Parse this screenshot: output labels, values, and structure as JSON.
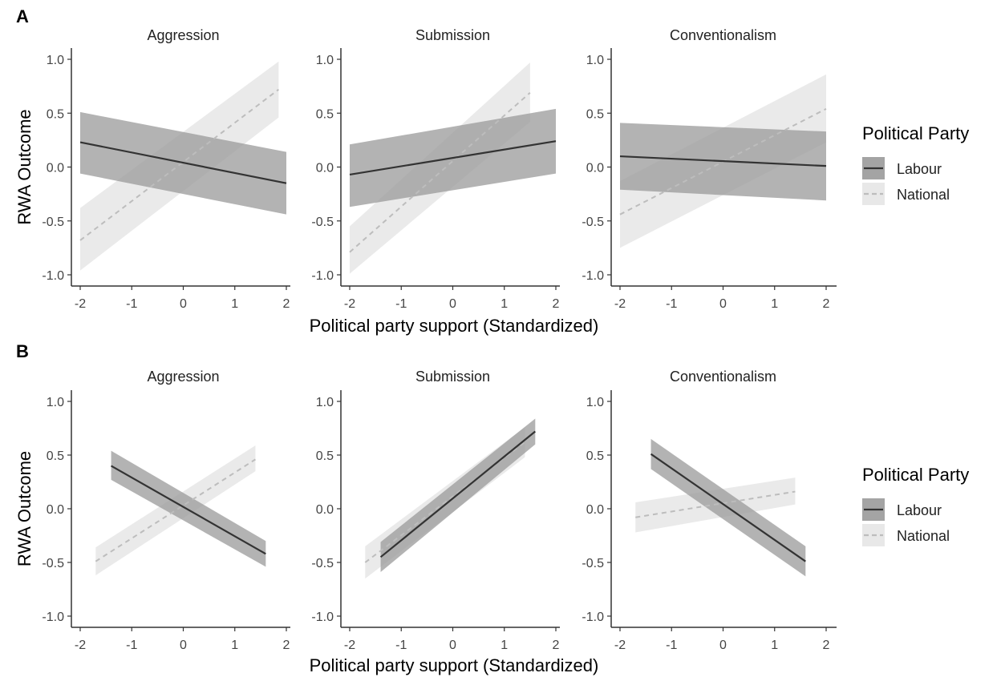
{
  "chart_data": [
    {
      "type": "line",
      "panel": "A",
      "facets": [
        {
          "title": "Aggression",
          "series": [
            {
              "name": "Labour",
              "x": [
                -2,
                2
              ],
              "y": [
                0.23,
                -0.15
              ],
              "ci_lower": [
                -0.06,
                -0.44
              ],
              "ci_upper": [
                0.51,
                0.14
              ]
            },
            {
              "name": "National",
              "x": [
                -2,
                1.85
              ],
              "y": [
                -0.68,
                0.72
              ],
              "ci_lower": [
                -0.96,
                0.46
              ],
              "ci_upper": [
                -0.38,
                0.98
              ]
            }
          ]
        },
        {
          "title": "Submission",
          "series": [
            {
              "name": "Labour",
              "x": [
                -2,
                2
              ],
              "y": [
                -0.07,
                0.24
              ],
              "ci_lower": [
                -0.37,
                -0.06
              ],
              "ci_upper": [
                0.21,
                0.54
              ]
            },
            {
              "name": "National",
              "x": [
                -2,
                1.5
              ],
              "y": [
                -0.79,
                0.69
              ],
              "ci_lower": [
                -0.99,
                0.42
              ],
              "ci_upper": [
                -0.55,
                0.97
              ]
            }
          ]
        },
        {
          "title": "Conventionalism",
          "series": [
            {
              "name": "Labour",
              "x": [
                -2,
                2
              ],
              "y": [
                0.1,
                0.01
              ],
              "ci_lower": [
                -0.21,
                -0.31
              ],
              "ci_upper": [
                0.41,
                0.33
              ]
            },
            {
              "name": "National",
              "x": [
                -2,
                2
              ],
              "y": [
                -0.44,
                0.54
              ],
              "ci_lower": [
                -0.75,
                0.23
              ],
              "ci_upper": [
                -0.13,
                0.86
              ]
            }
          ]
        }
      ],
      "xlabel": "Political party support (Standardized)",
      "ylabel": "RWA Outcome",
      "xlim": [
        -2,
        2
      ],
      "ylim": [
        -1.0,
        1.0
      ],
      "xticks": [
        "-2",
        "-1",
        "0",
        "1",
        "2"
      ],
      "yticks": [
        "1.0",
        "0.5",
        "0.0",
        "-0.5",
        "-1.0"
      ],
      "legend": {
        "title": "Political Party",
        "entries": [
          "Labour",
          "National"
        ],
        "placement": "right"
      },
      "colors": {
        "Labour": "#333333",
        "National": "#bdbdbd",
        "Labour_band": "#9a9a9a",
        "National_band": "#e6e6e6"
      }
    },
    {
      "type": "line",
      "panel": "B",
      "facets": [
        {
          "title": "Aggression",
          "series": [
            {
              "name": "Labour",
              "x": [
                -1.4,
                1.6
              ],
              "y": [
                0.4,
                -0.42
              ],
              "ci_lower": [
                0.27,
                -0.54
              ],
              "ci_upper": [
                0.54,
                -0.3
              ]
            },
            {
              "name": "National",
              "x": [
                -1.7,
                1.4
              ],
              "y": [
                -0.49,
                0.46
              ],
              "ci_lower": [
                -0.62,
                0.35
              ],
              "ci_upper": [
                -0.36,
                0.59
              ]
            }
          ]
        },
        {
          "title": "Submission",
          "series": [
            {
              "name": "Labour",
              "x": [
                -1.4,
                1.6
              ],
              "y": [
                -0.45,
                0.72
              ],
              "ci_lower": [
                -0.59,
                0.6
              ],
              "ci_upper": [
                -0.31,
                0.84
              ]
            },
            {
              "name": "National",
              "x": [
                -1.7,
                1.4
              ],
              "y": [
                -0.5,
                0.62
              ],
              "ci_lower": [
                -0.65,
                0.48
              ],
              "ci_upper": [
                -0.35,
                0.76
              ]
            }
          ]
        },
        {
          "title": "Conventionalism",
          "series": [
            {
              "name": "Labour",
              "x": [
                -1.4,
                1.6
              ],
              "y": [
                0.51,
                -0.49
              ],
              "ci_lower": [
                0.37,
                -0.63
              ],
              "ci_upper": [
                0.65,
                -0.35
              ]
            },
            {
              "name": "National",
              "x": [
                -1.7,
                1.4
              ],
              "y": [
                -0.08,
                0.16
              ],
              "ci_lower": [
                -0.22,
                0.04
              ],
              "ci_upper": [
                0.06,
                0.29
              ]
            }
          ]
        }
      ],
      "xlabel": "Political party support (Standardized)",
      "ylabel": "RWA Outcome",
      "xlim": [
        -2,
        2
      ],
      "ylim": [
        -1.0,
        1.0
      ],
      "xticks": [
        "-2",
        "-1",
        "0",
        "1",
        "2"
      ],
      "yticks": [
        "1.0",
        "0.5",
        "0.0",
        "-0.5",
        "-1.0"
      ],
      "legend": {
        "title": "Political Party",
        "entries": [
          "Labour",
          "National"
        ],
        "placement": "right"
      },
      "colors": {
        "Labour": "#333333",
        "National": "#bdbdbd",
        "Labour_band": "#9a9a9a",
        "National_band": "#e6e6e6"
      }
    }
  ]
}
